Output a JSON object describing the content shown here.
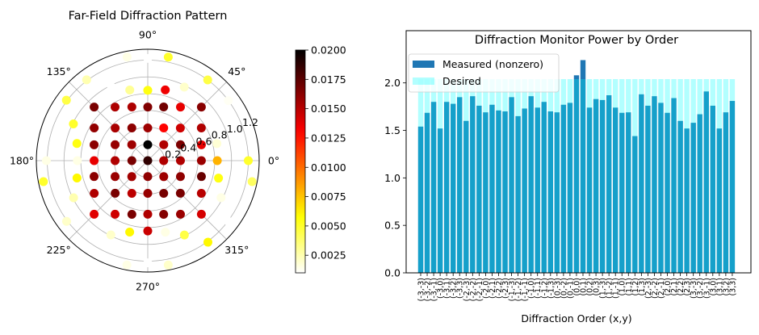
{
  "chart_data": [
    {
      "type": "scatter",
      "projection": "polar",
      "title": "Far-Field Diffraction Pattern",
      "angle_ticks": [
        "0°",
        "45°",
        "90°",
        "135°",
        "180°",
        "225°",
        "270°",
        "315°"
      ],
      "radial_ticks": [
        "0.2",
        "0.4",
        "0.6",
        "0.8",
        "1.0",
        "1.2"
      ],
      "radial_tick_values": [
        0.2,
        0.4,
        0.6,
        0.8,
        1.0,
        1.2
      ],
      "rlim": [
        0,
        1.33
      ],
      "grid": true,
      "colormap": "hot_r",
      "clim": [
        0.001,
        0.02
      ],
      "colorbar_ticks": [
        "0.0025",
        "0.0050",
        "0.0075",
        "0.0100",
        "0.0125",
        "0.0150",
        "0.0175",
        "0.0200"
      ],
      "colorbar_tick_values": [
        0.0025,
        0.005,
        0.0075,
        0.01,
        0.0125,
        0.015,
        0.0175,
        0.02
      ],
      "points": [
        {
          "theta": 225,
          "r": 0.905,
          "value": 0.0139
        },
        {
          "theta": 211.4,
          "r": 0.749,
          "value": 0.0152
        },
        {
          "theta": 196.5,
          "r": 0.668,
          "value": 0.0162
        },
        {
          "theta": 180,
          "r": 0.64,
          "value": 0.0137
        },
        {
          "theta": 163.5,
          "r": 0.668,
          "value": 0.0162
        },
        {
          "theta": 148.6,
          "r": 0.749,
          "value": 0.016
        },
        {
          "theta": 135,
          "r": 0.905,
          "value": 0.0167
        },
        {
          "theta": 238.6,
          "r": 0.749,
          "value": 0.0144
        },
        {
          "theta": 225,
          "r": 0.55,
          "value": 0.0167
        },
        {
          "theta": 206,
          "r": 0.434,
          "value": 0.0158
        },
        {
          "theta": 180,
          "r": 0.39,
          "value": 0.0152
        },
        {
          "theta": 154,
          "r": 0.434,
          "value": 0.0159
        },
        {
          "theta": 135,
          "r": 0.55,
          "value": 0.0154
        },
        {
          "theta": 121.4,
          "r": 0.749,
          "value": 0.0153
        },
        {
          "theta": 253.5,
          "r": 0.668,
          "value": 0.0167
        },
        {
          "theta": 244,
          "r": 0.434,
          "value": 0.0149
        },
        {
          "theta": 225,
          "r": 0.27,
          "value": 0.0156
        },
        {
          "theta": 180,
          "r": 0.19,
          "value": 0.0167
        },
        {
          "theta": 135,
          "r": 0.27,
          "value": 0.0157
        },
        {
          "theta": 116,
          "r": 0.434,
          "value": 0.0162
        },
        {
          "theta": 106.5,
          "r": 0.668,
          "value": 0.0153
        },
        {
          "theta": 270,
          "r": 0.64,
          "value": 0.0152
        },
        {
          "theta": 270,
          "r": 0.39,
          "value": 0.0159
        },
        {
          "theta": 270,
          "r": 0.19,
          "value": 0.0161
        },
        {
          "theta": 0,
          "r": 0,
          "value": 0.0187
        },
        {
          "theta": 90,
          "r": 0.19,
          "value": 0.0202
        },
        {
          "theta": 90,
          "r": 0.39,
          "value": 0.0157
        },
        {
          "theta": 90,
          "r": 0.64,
          "value": 0.0165
        },
        {
          "theta": 286.5,
          "r": 0.668,
          "value": 0.0164
        },
        {
          "theta": 296,
          "r": 0.434,
          "value": 0.0168
        },
        {
          "theta": 315,
          "r": 0.27,
          "value": 0.0157
        },
        {
          "theta": 0,
          "r": 0.19,
          "value": 0.0152
        },
        {
          "theta": 45,
          "r": 0.27,
          "value": 0.0152
        },
        {
          "theta": 64,
          "r": 0.434,
          "value": 0.013
        },
        {
          "theta": 73.5,
          "r": 0.668,
          "value": 0.0169
        },
        {
          "theta": 301.4,
          "r": 0.749,
          "value": 0.0158
        },
        {
          "theta": 315,
          "r": 0.55,
          "value": 0.0167
        },
        {
          "theta": 334,
          "r": 0.434,
          "value": 0.0161
        },
        {
          "theta": 0,
          "r": 0.39,
          "value": 0.0152
        },
        {
          "theta": 26,
          "r": 0.434,
          "value": 0.0166
        },
        {
          "theta": 45,
          "r": 0.55,
          "value": 0.0144
        },
        {
          "theta": 58.6,
          "r": 0.749,
          "value": 0.0137
        },
        {
          "theta": 315,
          "r": 0.905,
          "value": 0.0142
        },
        {
          "theta": 328.6,
          "r": 0.749,
          "value": 0.015
        },
        {
          "theta": 343.5,
          "r": 0.668,
          "value": 0.0172
        },
        {
          "theta": 0,
          "r": 0.64,
          "value": 0.0158
        },
        {
          "theta": 16.5,
          "r": 0.668,
          "value": 0.0137
        },
        {
          "theta": 31.4,
          "r": 0.749,
          "value": 0.0152
        },
        {
          "theta": 45,
          "r": 0.905,
          "value": 0.0163
        },
        {
          "theta": 78.8,
          "r": 1.26,
          "value": 0.005
        },
        {
          "theta": 90,
          "r": 1.22,
          "value": 0.001
        },
        {
          "theta": 101.3,
          "r": 1.26,
          "value": 0.0015
        },
        {
          "theta": 127.1,
          "r": 1.21,
          "value": 0.0025
        },
        {
          "theta": 53.4,
          "r": 1.2,
          "value": 0.0045
        },
        {
          "theta": 63.6,
          "r": 0.98,
          "value": 0.002
        },
        {
          "theta": 116.2,
          "r": 0.98,
          "value": 0.0008
        },
        {
          "theta": 104.3,
          "r": 0.87,
          "value": 0.003
        },
        {
          "theta": 90,
          "r": 0.84,
          "value": 0.0055
        },
        {
          "theta": 76.1,
          "r": 0.87,
          "value": 0.0135
        },
        {
          "theta": 143.4,
          "r": 1.21,
          "value": 0.0045
        },
        {
          "theta": 36.7,
          "r": 1.2,
          "value": 0.0012
        },
        {
          "theta": 153.7,
          "r": 0.99,
          "value": 0.005
        },
        {
          "theta": 166.4,
          "r": 0.87,
          "value": 0.0055
        },
        {
          "theta": 13.9,
          "r": 0.85,
          "value": 0.0018
        },
        {
          "theta": 180,
          "r": 1.21,
          "value": 0.0015
        },
        {
          "theta": 180,
          "r": 0.84,
          "value": 0.0015
        },
        {
          "theta": 0,
          "r": 0.83,
          "value": 0.008
        },
        {
          "theta": 0,
          "r": 1.2,
          "value": 0.005
        },
        {
          "theta": 191.4,
          "r": 1.27,
          "value": 0.005
        },
        {
          "theta": 193.8,
          "r": 0.87,
          "value": 0.006
        },
        {
          "theta": 346.1,
          "r": 0.87,
          "value": 0.0055
        },
        {
          "theta": 348.6,
          "r": 1.27,
          "value": 0.004
        },
        {
          "theta": 206.6,
          "r": 0.99,
          "value": 0.0025
        },
        {
          "theta": 333.2,
          "r": 0.98,
          "value": 0.0015
        },
        {
          "theta": 216.8,
          "r": 1.21,
          "value": 0.002
        },
        {
          "theta": 323,
          "r": 1.21,
          "value": 0.001
        },
        {
          "theta": 243.6,
          "r": 0.99,
          "value": 0.002
        },
        {
          "theta": 255.8,
          "r": 0.88,
          "value": 0.006
        },
        {
          "theta": 270,
          "r": 0.84,
          "value": 0.0145
        },
        {
          "theta": 283.8,
          "r": 0.88,
          "value": 0.0015
        },
        {
          "theta": 296.2,
          "r": 0.99,
          "value": 0.0045
        },
        {
          "theta": 306.4,
          "r": 1.21,
          "value": 0.006
        },
        {
          "theta": 258.7,
          "r": 1.27,
          "value": 0.0015
        },
        {
          "theta": 270,
          "r": 1.22,
          "value": 0.0008
        },
        {
          "theta": 281.1,
          "r": 1.27,
          "value": 0.002
        }
      ]
    },
    {
      "type": "bar",
      "title": "Diffraction Monitor Power by Order",
      "xlabel": "Diffraction Order (x,y)",
      "ylabel": "",
      "ylim": [
        0,
        2.55
      ],
      "yticks": [
        "0.0",
        "0.5",
        "1.0",
        "1.5",
        "2.0"
      ],
      "ytick_values": [
        0,
        0.5,
        1.0,
        1.5,
        2.0
      ],
      "legend_placement": "upper-left",
      "categories": [
        "(-3,-3)",
        "(-3,-2)",
        "(-3,-1)",
        "(-3,0)",
        "(-3,1)",
        "(-3,2)",
        "(-3,3)",
        "(-2,-3)",
        "(-2,-2)",
        "(-2,-1)",
        "(-2,0)",
        "(-2,1)",
        "(-2,2)",
        "(-2,3)",
        "(-1,-3)",
        "(-1,-2)",
        "(-1,-1)",
        "(-1,0)",
        "(-1,1)",
        "(-1,2)",
        "(-1,3)",
        "(0,-3)",
        "(0,-2)",
        "(0,-1)",
        "(0,0)",
        "(0,1)",
        "(0,2)",
        "(0,3)",
        "(1,-3)",
        "(1,-2)",
        "(1,-1)",
        "(1,0)",
        "(1,1)",
        "(1,2)",
        "(1,3)",
        "(2,-3)",
        "(2,-2)",
        "(2,-1)",
        "(2,0)",
        "(2,1)",
        "(2,2)",
        "(2,3)",
        "(3,-3)",
        "(3,-2)",
        "(3,-1)",
        "(3,0)",
        "(3,1)",
        "(3,2)",
        "(3,3)"
      ],
      "series": [
        {
          "name": "Measured (nonzero)",
          "color": "#1f77b4",
          "values": [
            1.54,
            1.685,
            1.8,
            1.52,
            1.8,
            1.78,
            1.85,
            1.6,
            1.86,
            1.76,
            1.69,
            1.77,
            1.71,
            1.7,
            1.85,
            1.65,
            1.73,
            1.86,
            1.74,
            1.8,
            1.7,
            1.69,
            1.77,
            1.79,
            2.08,
            2.24,
            1.74,
            1.83,
            1.82,
            1.87,
            1.74,
            1.685,
            1.69,
            1.44,
            1.88,
            1.76,
            1.86,
            1.79,
            1.685,
            1.84,
            1.6,
            1.52,
            1.58,
            1.67,
            1.91,
            1.76,
            1.52,
            1.69,
            1.81
          ]
        },
        {
          "name": "Desired",
          "color": "#00ffff",
          "alpha": 0.3,
          "values": [
            2.04,
            2.04,
            2.04,
            2.04,
            2.04,
            2.04,
            2.04,
            2.04,
            2.04,
            2.04,
            2.04,
            2.04,
            2.04,
            2.04,
            2.04,
            2.04,
            2.04,
            2.04,
            2.04,
            2.04,
            2.04,
            2.04,
            2.04,
            2.04,
            2.04,
            2.04,
            2.04,
            2.04,
            2.04,
            2.04,
            2.04,
            2.04,
            2.04,
            2.04,
            2.04,
            2.04,
            2.04,
            2.04,
            2.04,
            2.04,
            2.04,
            2.04,
            2.04,
            2.04,
            2.04,
            2.04,
            2.04,
            2.04,
            2.04
          ]
        }
      ]
    }
  ]
}
